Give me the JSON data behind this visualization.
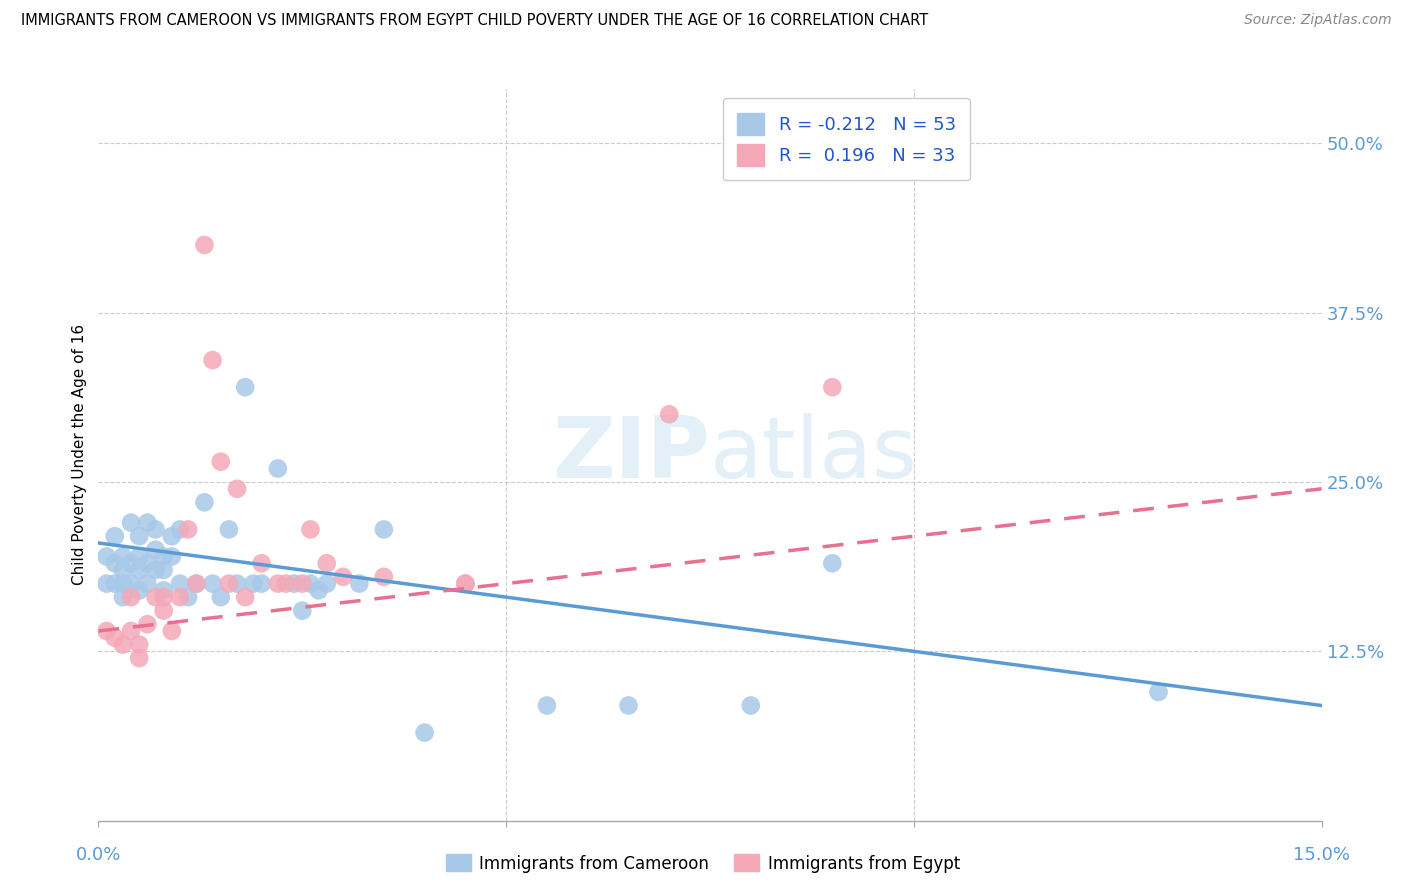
{
  "title": "IMMIGRANTS FROM CAMEROON VS IMMIGRANTS FROM EGYPT CHILD POVERTY UNDER THE AGE OF 16 CORRELATION CHART",
  "source": "Source: ZipAtlas.com",
  "ylabel": "Child Poverty Under the Age of 16",
  "ytick_labels": [
    "12.5%",
    "25.0%",
    "37.5%",
    "50.0%"
  ],
  "ytick_values": [
    0.125,
    0.25,
    0.375,
    0.5
  ],
  "xmin": 0.0,
  "xmax": 0.15,
  "ymin": 0.0,
  "ymax": 0.54,
  "watermark": "ZIPatlas",
  "legend_label1": "Immigrants from Cameroon",
  "legend_label2": "Immigrants from Egypt",
  "R1": "-0.212",
  "N1": "53",
  "R2": "0.196",
  "N2": "33",
  "color_cameroon": "#a8c8e8",
  "color_egypt": "#f4a8b8",
  "trendline_color_cameroon": "#5b9bd5",
  "trendline_color_egypt": "#e87090",
  "cameroon_x": [
    0.001,
    0.001,
    0.002,
    0.002,
    0.002,
    0.003,
    0.003,
    0.003,
    0.003,
    0.004,
    0.004,
    0.004,
    0.005,
    0.005,
    0.005,
    0.005,
    0.006,
    0.006,
    0.006,
    0.007,
    0.007,
    0.007,
    0.008,
    0.008,
    0.008,
    0.009,
    0.009,
    0.01,
    0.01,
    0.011,
    0.012,
    0.013,
    0.014,
    0.015,
    0.016,
    0.017,
    0.018,
    0.019,
    0.02,
    0.022,
    0.024,
    0.025,
    0.026,
    0.027,
    0.028,
    0.032,
    0.035,
    0.04,
    0.055,
    0.065,
    0.08,
    0.09,
    0.13
  ],
  "cameroon_y": [
    0.195,
    0.175,
    0.21,
    0.19,
    0.175,
    0.195,
    0.185,
    0.175,
    0.165,
    0.22,
    0.19,
    0.175,
    0.21,
    0.195,
    0.185,
    0.17,
    0.22,
    0.19,
    0.175,
    0.215,
    0.2,
    0.185,
    0.195,
    0.185,
    0.17,
    0.21,
    0.195,
    0.215,
    0.175,
    0.165,
    0.175,
    0.235,
    0.175,
    0.165,
    0.215,
    0.175,
    0.32,
    0.175,
    0.175,
    0.26,
    0.175,
    0.155,
    0.175,
    0.17,
    0.175,
    0.175,
    0.215,
    0.065,
    0.085,
    0.085,
    0.085,
    0.19,
    0.095
  ],
  "egypt_x": [
    0.001,
    0.002,
    0.003,
    0.004,
    0.004,
    0.005,
    0.005,
    0.006,
    0.007,
    0.008,
    0.008,
    0.009,
    0.01,
    0.011,
    0.012,
    0.013,
    0.014,
    0.015,
    0.016,
    0.017,
    0.018,
    0.02,
    0.022,
    0.023,
    0.025,
    0.026,
    0.028,
    0.03,
    0.035,
    0.045,
    0.045,
    0.07,
    0.09
  ],
  "egypt_y": [
    0.14,
    0.135,
    0.13,
    0.165,
    0.14,
    0.13,
    0.12,
    0.145,
    0.165,
    0.165,
    0.155,
    0.14,
    0.165,
    0.215,
    0.175,
    0.425,
    0.34,
    0.265,
    0.175,
    0.245,
    0.165,
    0.19,
    0.175,
    0.175,
    0.175,
    0.215,
    0.19,
    0.18,
    0.18,
    0.175,
    0.175,
    0.3,
    0.32
  ],
  "cameroon_trend_x": [
    0.0,
    0.15
  ],
  "cameroon_trend_y": [
    0.205,
    0.085
  ],
  "egypt_trend_x": [
    0.0,
    0.15
  ],
  "egypt_trend_y": [
    0.14,
    0.245
  ]
}
